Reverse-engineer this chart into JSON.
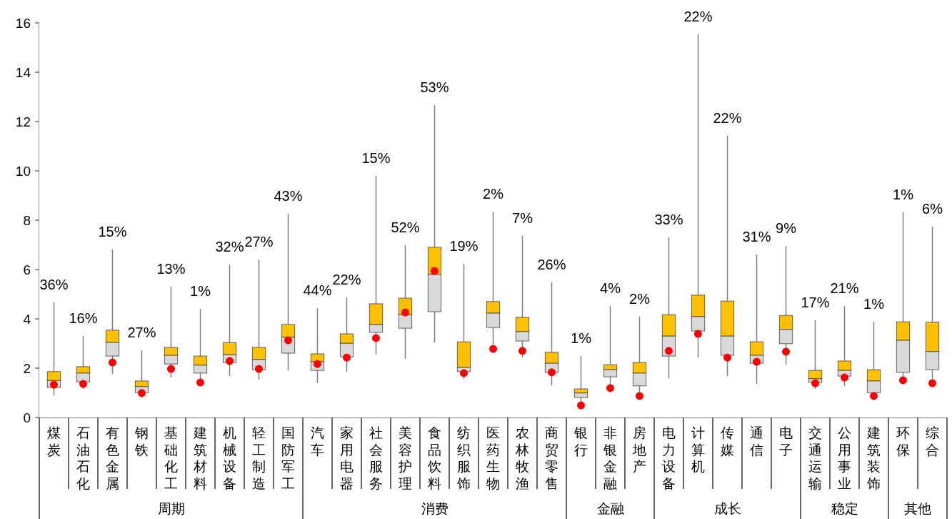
{
  "chart_data": {
    "type": "box",
    "categories": [
      "煤炭",
      "石油石化",
      "有色金属",
      "钢铁",
      "基础化工",
      "建筑材料",
      "机械设备",
      "轻工制造",
      "国防军工",
      "汽车",
      "家用电器",
      "社会服务",
      "美容护理",
      "食品饮料",
      "纺织服饰",
      "医药生物",
      "农林牧渔",
      "商贸零售",
      "银行",
      "非银金融",
      "房地产",
      "电力设备",
      "计算机",
      "传媒",
      "通信",
      "电子",
      "交通运输",
      "公用事业",
      "建筑装饰",
      "环保",
      "综合"
    ],
    "ylim": [
      0,
      16
    ],
    "yticks": [
      0,
      2,
      4,
      6,
      8,
      10,
      12,
      14,
      16
    ],
    "series": [
      {
        "type": "box",
        "color": "#d9d9d9",
        "boxes": [
          {
            "low": 0.9,
            "q1": 1.22,
            "median": 1.5,
            "q3": 1.86,
            "high": 4.67
          },
          {
            "low": 1.16,
            "q1": 1.45,
            "median": 1.8,
            "q3": 2.06,
            "high": 3.3
          },
          {
            "low": 1.77,
            "q1": 2.49,
            "median": 3.04,
            "q3": 3.54,
            "high": 6.81
          },
          {
            "low": 0.81,
            "q1": 1.01,
            "median": 1.25,
            "q3": 1.48,
            "high": 2.72
          },
          {
            "low": 1.62,
            "q1": 2.17,
            "median": 2.52,
            "q3": 2.84,
            "high": 5.3
          },
          {
            "low": 1.39,
            "q1": 1.8,
            "median": 2.12,
            "q3": 2.49,
            "high": 4.41
          },
          {
            "low": 1.68,
            "q1": 2.23,
            "median": 2.55,
            "q3": 3.04,
            "high": 6.2
          },
          {
            "low": 1.54,
            "q1": 1.94,
            "median": 2.35,
            "q3": 2.84,
            "high": 6.4
          },
          {
            "low": 1.91,
            "q1": 2.61,
            "median": 3.25,
            "q3": 3.77,
            "high": 8.26
          },
          {
            "low": 1.39,
            "q1": 1.91,
            "median": 2.26,
            "q3": 2.58,
            "high": 4.43
          },
          {
            "low": 1.86,
            "q1": 2.46,
            "median": 3.01,
            "q3": 3.39,
            "high": 4.87
          },
          {
            "low": 2.55,
            "q1": 3.45,
            "median": 3.77,
            "q3": 4.61,
            "high": 9.8
          },
          {
            "low": 2.38,
            "q1": 3.62,
            "median": 4.17,
            "q3": 4.84,
            "high": 6.99
          },
          {
            "low": 3.04,
            "q1": 4.29,
            "median": 5.8,
            "q3": 6.9,
            "high": 12.67
          },
          {
            "low": 1.57,
            "q1": 1.86,
            "median": 2.03,
            "q3": 3.07,
            "high": 6.23
          },
          {
            "low": 2.96,
            "q1": 3.65,
            "median": 4.23,
            "q3": 4.7,
            "high": 8.35
          },
          {
            "low": 2.43,
            "q1": 3.1,
            "median": 3.48,
            "q3": 4.06,
            "high": 7.36
          },
          {
            "low": 1.3,
            "q1": 1.83,
            "median": 2.2,
            "q3": 2.64,
            "high": 5.48
          },
          {
            "low": 0.61,
            "q1": 0.81,
            "median": 0.99,
            "q3": 1.16,
            "high": 2.49
          },
          {
            "low": 1.28,
            "q1": 1.65,
            "median": 1.94,
            "q3": 2.14,
            "high": 4.52
          },
          {
            "low": 0.78,
            "q1": 1.28,
            "median": 1.8,
            "q3": 2.23,
            "high": 4.09
          },
          {
            "low": 1.59,
            "q1": 2.49,
            "median": 3.3,
            "q3": 4.17,
            "high": 7.3
          },
          {
            "low": 2.43,
            "q1": 3.51,
            "median": 4.09,
            "q3": 4.96,
            "high": 15.54
          },
          {
            "low": 1.68,
            "q1": 2.52,
            "median": 3.3,
            "q3": 4.72,
            "high": 11.42
          },
          {
            "low": 1.36,
            "q1": 2.2,
            "median": 2.52,
            "q3": 3.07,
            "high": 6.61
          },
          {
            "low": 2.14,
            "q1": 2.99,
            "median": 3.57,
            "q3": 4.14,
            "high": 6.96
          },
          {
            "low": 1.16,
            "q1": 1.42,
            "median": 1.57,
            "q3": 1.91,
            "high": 3.94
          },
          {
            "low": 1.28,
            "q1": 1.68,
            "median": 1.91,
            "q3": 2.29,
            "high": 4.52
          },
          {
            "low": 0.81,
            "q1": 1.01,
            "median": 1.48,
            "q3": 1.94,
            "high": 3.88
          },
          {
            "low": 1.51,
            "q1": 1.83,
            "median": 3.13,
            "q3": 3.88,
            "high": 8.32
          },
          {
            "low": 1.57,
            "q1": 1.94,
            "median": 2.67,
            "q3": 3.86,
            "high": 7.74
          }
        ]
      },
      {
        "type": "scatter",
        "color": "#ff0000",
        "marker": "circle",
        "x": [
          "煤炭",
          "石油石化",
          "有色金属",
          "钢铁",
          "基础化工",
          "建筑材料",
          "机械设备",
          "轻工制造",
          "国防军工",
          "汽车",
          "家用电器",
          "社会服务",
          "美容护理",
          "食品饮料",
          "纺织服饰",
          "医药生物",
          "农林牧渔",
          "商贸零售",
          "银行",
          "非银金融",
          "房地产",
          "电力设备",
          "计算机",
          "传媒",
          "通信",
          "电子",
          "交通运输",
          "公用事业",
          "建筑装饰",
          "环保",
          "综合"
        ],
        "values": [
          1.33,
          1.36,
          2.23,
          0.99,
          1.97,
          1.42,
          2.29,
          1.97,
          3.13,
          2.17,
          2.43,
          3.22,
          4.26,
          5.94,
          1.8,
          2.78,
          2.7,
          1.83,
          0.49,
          1.19,
          0.87,
          2.7,
          3.39,
          2.43,
          2.26,
          2.67,
          1.39,
          1.62,
          0.87,
          1.51,
          1.39
        ]
      }
    ],
    "bands": [
      {
        "axis": "x",
        "from": "煤炭",
        "to": "国防军工",
        "label": "周期",
        "color": "#ffffff"
      },
      {
        "axis": "x",
        "from": "汽车",
        "to": "商贸零售",
        "label": "消费",
        "color": "#ffffff"
      },
      {
        "axis": "x",
        "from": "银行",
        "to": "房地产",
        "label": "金融",
        "color": "#ffffff"
      },
      {
        "axis": "x",
        "from": "电力设备",
        "to": "电子",
        "label": "成长",
        "color": "#ffffff"
      },
      {
        "axis": "x",
        "from": "交通运输",
        "to": "建筑装饰",
        "label": "稳定",
        "color": "#ffffff"
      },
      {
        "axis": "x",
        "from": "环保",
        "to": "综合",
        "label": "其他",
        "color": "#ffffff"
      }
    ],
    "annotations": [
      {
        "text": "36%",
        "x": "煤炭",
        "y": 4.67
      },
      {
        "text": "16%",
        "x": "石油石化",
        "y": 3.3
      },
      {
        "text": "15%",
        "x": "有色金属",
        "y": 6.81
      },
      {
        "text": "27%",
        "x": "钢铁",
        "y": 2.72
      },
      {
        "text": "13%",
        "x": "基础化工",
        "y": 5.3
      },
      {
        "text": "1%",
        "x": "建筑材料",
        "y": 4.41
      },
      {
        "text": "32%",
        "x": "机械设备",
        "y": 6.2
      },
      {
        "text": "27%",
        "x": "轻工制造",
        "y": 6.4
      },
      {
        "text": "43%",
        "x": "国防军工",
        "y": 8.26
      },
      {
        "text": "44%",
        "x": "汽车",
        "y": 4.43
      },
      {
        "text": "22%",
        "x": "家用电器",
        "y": 4.87
      },
      {
        "text": "15%",
        "x": "社会服务",
        "y": 9.8
      },
      {
        "text": "52%",
        "x": "美容护理",
        "y": 6.99
      },
      {
        "text": "53%",
        "x": "食品饮料",
        "y": 12.67
      },
      {
        "text": "19%",
        "x": "纺织服饰",
        "y": 6.23
      },
      {
        "text": "2%",
        "x": "医药生物",
        "y": 8.35
      },
      {
        "text": "7%",
        "x": "农林牧渔",
        "y": 7.36
      },
      {
        "text": "26%",
        "x": "商贸零售",
        "y": 5.48
      },
      {
        "text": "1%",
        "x": "银行",
        "y": 2.49
      },
      {
        "text": "4%",
        "x": "非银金融",
        "y": 4.52
      },
      {
        "text": "2%",
        "x": "房地产",
        "y": 4.09
      },
      {
        "text": "33%",
        "x": "电力设备",
        "y": 7.3
      },
      {
        "text": "22%",
        "x": "计算机",
        "y": 15.54
      },
      {
        "text": "22%",
        "x": "传媒",
        "y": 11.42
      },
      {
        "text": "31%",
        "x": "通信",
        "y": 6.61
      },
      {
        "text": "9%",
        "x": "电子",
        "y": 6.96
      },
      {
        "text": "17%",
        "x": "交通运输",
        "y": 3.94
      },
      {
        "text": "21%",
        "x": "公用事业",
        "y": 4.52
      },
      {
        "text": "1%",
        "x": "建筑装饰",
        "y": 3.88
      },
      {
        "text": "1%",
        "x": "环保",
        "y": 8.32
      },
      {
        "text": "6%",
        "x": "综合",
        "y": 7.74
      }
    ]
  }
}
